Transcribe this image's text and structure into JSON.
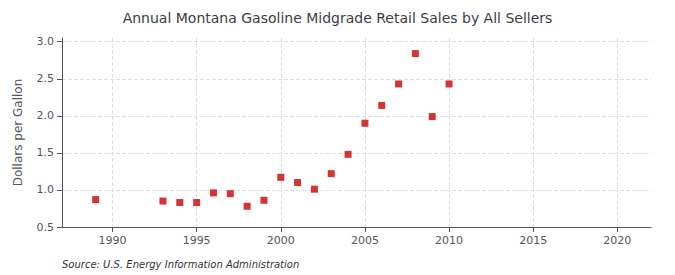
{
  "chart_data": {
    "type": "scatter",
    "title": "Annual Montana Gasoline Midgrade Retail Sales by All Sellers",
    "ylabel": "Dollars per Gallon",
    "source": "Source: U.S. Energy Information Administration",
    "x": [
      1989,
      1993,
      1994,
      1995,
      1996,
      1997,
      1998,
      1999,
      2000,
      2001,
      2002,
      2003,
      2004,
      2005,
      2006,
      2007,
      2008,
      2009,
      2010
    ],
    "values": [
      0.87,
      0.85,
      0.83,
      0.83,
      0.96,
      0.95,
      0.78,
      0.86,
      1.17,
      1.1,
      1.01,
      1.22,
      1.48,
      1.9,
      2.14,
      2.43,
      2.84,
      1.99,
      2.43
    ],
    "color": "#cc0000",
    "marker": "square",
    "xlim": [
      1987,
      2022
    ],
    "ylim": [
      0.5,
      3.05
    ],
    "xticks": [
      1990,
      1995,
      2000,
      2005,
      2010,
      2015,
      2020
    ],
    "yticks": [
      0.5,
      {
        "value": 1.0,
        "label": "1.0"
      },
      1.5,
      {
        "value": 2.0,
        "label": "2.0"
      },
      2.5,
      {
        "value": 3.0,
        "label": "3.0"
      }
    ],
    "grid": true
  }
}
